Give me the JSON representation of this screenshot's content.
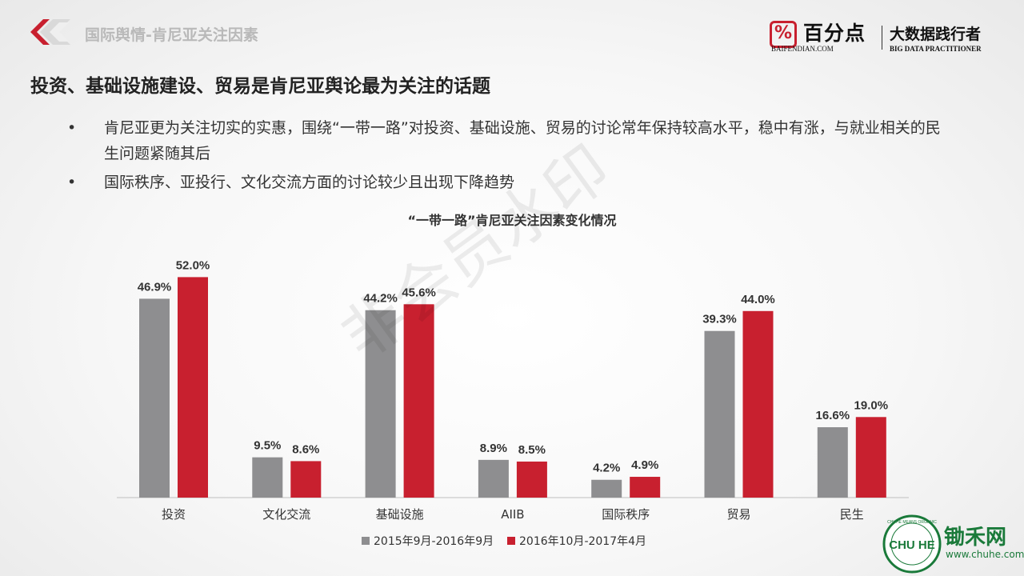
{
  "header": {
    "section_title": "国际舆情-肯尼亚关注因素"
  },
  "brand": {
    "logo_glyph": "%",
    "name": "百分点",
    "domain": "BAIFENDIAN.COM",
    "slogan": "大数据践行者",
    "slogan_en": "BIG DATA PRACTITIONER"
  },
  "headline": "投资、基础设施建设、贸易是肯尼亚舆论最为关注的话题",
  "bullets": [
    {
      "marker": "•",
      "text": "肯尼亚更为关注切实的实惠，围绕“一带一路”对投资、基础设施、贸易的讨论常年保持较高水平，稳中有涨，与就业相关的民生问题紧随其后"
    },
    {
      "marker": "•",
      "text": "国际秩序、亚投行、文化交流方面的讨论较少且出现下降趋势"
    }
  ],
  "watermark": "非会员水印",
  "chart_data": {
    "type": "bar",
    "title": "“一带一路”肯尼亚关注因素变化情况",
    "categories": [
      "投资",
      "文化交流",
      "基础设施",
      "AIIB",
      "国际秩序",
      "贸易",
      "民生"
    ],
    "series": [
      {
        "name": "2015年9月-2016年9月",
        "color": "#8e8e90",
        "values": [
          46.9,
          9.5,
          44.2,
          8.9,
          4.2,
          39.3,
          16.6
        ]
      },
      {
        "name": "2016年10月-2017年4月",
        "color": "#c8202f",
        "values": [
          52.0,
          8.6,
          45.6,
          8.5,
          4.9,
          44.0,
          19.0
        ]
      }
    ],
    "value_suffix": "%",
    "ylim": [
      0,
      60
    ],
    "grid": false,
    "legend_position": "bottom"
  },
  "footer": {
    "partner_name": "锄禾网",
    "partner_url": "www.chuhe.com",
    "partner_badge": "CHU HE",
    "partner_ring": "CHUHE MEANS ORGANIC"
  },
  "colors": {
    "brand_red": "#c8202f",
    "bar_gray": "#8e8e90",
    "partner_green": "#1a7a3a"
  }
}
